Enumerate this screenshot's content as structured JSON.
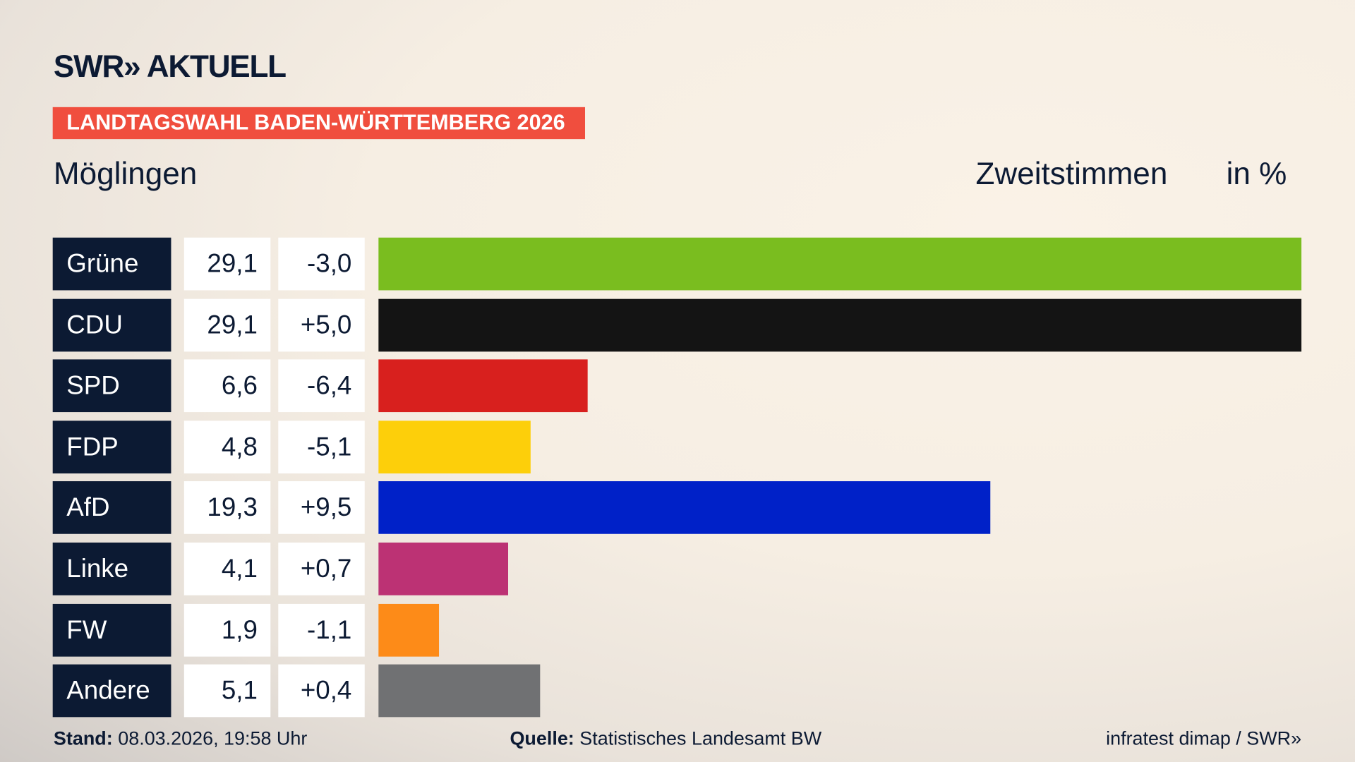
{
  "header": {
    "logo": "SWR» AKTUELL",
    "kicker": "LANDTAGSWAHL BADEN-WÜRTTEMBERG 2026",
    "place": "Möglingen",
    "vote_type": "Zweitstimmen",
    "unit": "in %"
  },
  "chart_data": {
    "type": "bar",
    "orientation": "horizontal",
    "categories": [
      "Grüne",
      "CDU",
      "SPD",
      "FDP",
      "AfD",
      "Linke",
      "FW",
      "Andere"
    ],
    "values": [
      29.1,
      29.1,
      6.6,
      4.8,
      19.3,
      4.1,
      1.9,
      5.1
    ],
    "value_labels": [
      "29,1",
      "29,1",
      "6,6",
      "4,8",
      "19,3",
      "4,1",
      "1,9",
      "5,1"
    ],
    "changes": [
      -3.0,
      5.0,
      -6.4,
      -5.1,
      9.5,
      0.7,
      -1.1,
      0.4
    ],
    "change_labels": [
      "-3,0",
      "+5,0",
      "-6,4",
      "-5,1",
      "+9,5",
      "+0,7",
      "-1,1",
      "+0,4"
    ],
    "colors": [
      "#7abd1f",
      "#141414",
      "#d8201e",
      "#fdcf0a",
      "#0021c8",
      "#bc3274",
      "#fd8b18",
      "#707173"
    ],
    "title": "Zweitstimmen",
    "ylabel": "in %"
  },
  "footer": {
    "stand_label": "Stand:",
    "stand_value": "08.03.2026, 19:58 Uhr",
    "source_label": "Quelle:",
    "source_value": "Statistisches Landesamt BW",
    "credit": "infratest dimap / SWR»"
  }
}
